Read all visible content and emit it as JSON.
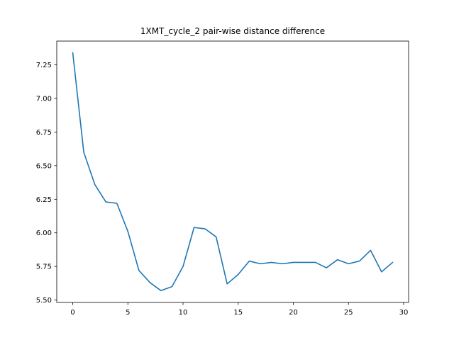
{
  "chart_data": {
    "type": "line",
    "title": "1XMT_cycle_2 pair-wise distance difference",
    "xlabel": "",
    "ylabel": "",
    "xlim": [
      -1.45,
      30.45
    ],
    "ylim": [
      5.482,
      7.427
    ],
    "x_ticks": [
      0,
      5,
      10,
      15,
      20,
      25,
      30
    ],
    "y_ticks": [
      5.5,
      5.75,
      6.0,
      6.25,
      6.5,
      6.75,
      7.0,
      7.25
    ],
    "grid": false,
    "legend": "none",
    "series": [
      {
        "color": "#1f77b4",
        "x": [
          0,
          1,
          2,
          3,
          4,
          5,
          6,
          7,
          8,
          9,
          10,
          11,
          12,
          13,
          14,
          15,
          16,
          17,
          18,
          19,
          20,
          21,
          22,
          23,
          24,
          25,
          26,
          27,
          28,
          29
        ],
        "values": [
          7.34,
          6.6,
          6.36,
          6.23,
          6.22,
          6.01,
          5.72,
          5.63,
          5.57,
          5.6,
          5.75,
          6.04,
          6.03,
          5.97,
          5.62,
          5.69,
          5.79,
          5.77,
          5.78,
          5.77,
          5.78,
          5.78,
          5.78,
          5.74,
          5.8,
          5.77,
          5.79,
          5.87,
          5.71,
          5.78
        ]
      }
    ]
  }
}
